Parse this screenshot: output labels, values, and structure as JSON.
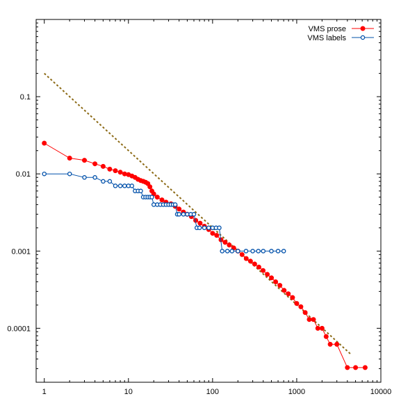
{
  "chart_data": {
    "type": "scatter",
    "x_scale": "log",
    "y_scale": "log",
    "xlim": [
      0.8,
      10000
    ],
    "ylim": [
      2e-05,
      1
    ],
    "x_ticks": [
      {
        "value": 1,
        "label": "1"
      },
      {
        "value": 10,
        "label": "10"
      },
      {
        "value": 100,
        "label": "100"
      },
      {
        "value": 1000,
        "label": "1000"
      },
      {
        "value": 10000,
        "label": "10000"
      }
    ],
    "y_ticks": [
      {
        "value": 0.1,
        "label": "0.1"
      },
      {
        "value": 0.01,
        "label": "0.01"
      },
      {
        "value": 0.001,
        "label": "0.001"
      },
      {
        "value": 0.0001,
        "label": "0.0001"
      }
    ],
    "grid": false,
    "legend_position": "top-right",
    "series": [
      {
        "name": "VMS prose",
        "color": "#ff0000",
        "marker": "filled-circle",
        "line": true,
        "x": [
          1,
          2,
          3,
          4,
          5,
          6,
          7,
          8,
          9,
          10,
          11,
          12,
          13,
          14,
          15,
          16,
          17,
          18,
          19,
          20,
          22,
          25,
          28,
          32,
          36,
          40,
          45,
          50,
          56,
          63,
          71,
          80,
          90,
          100,
          112,
          126,
          141,
          158,
          178,
          200,
          224,
          251,
          282,
          316,
          355,
          398,
          447,
          501,
          562,
          631,
          708,
          794,
          891,
          1000,
          1120,
          1260,
          1410,
          1580,
          1780,
          2000,
          2240,
          2500,
          3000,
          4000,
          5000,
          6500
        ],
        "y": [
          0.025,
          0.016,
          0.015,
          0.0135,
          0.0125,
          0.0115,
          0.011,
          0.0105,
          0.01,
          0.0098,
          0.0094,
          0.009,
          0.0085,
          0.0082,
          0.008,
          0.0078,
          0.0075,
          0.0068,
          0.006,
          0.0055,
          0.005,
          0.0046,
          0.0043,
          0.0041,
          0.0038,
          0.0035,
          0.0032,
          0.003,
          0.0028,
          0.0025,
          0.0023,
          0.0021,
          0.0019,
          0.0017,
          0.0016,
          0.0014,
          0.0013,
          0.0012,
          0.0011,
          0.001,
          0.0009,
          0.0008,
          0.00074,
          0.00068,
          0.00062,
          0.00056,
          0.0005,
          0.00045,
          0.0004,
          0.00036,
          0.00031,
          0.00028,
          0.00025,
          0.00021,
          0.00019,
          0.00016,
          0.00013,
          0.00013,
          0.0001,
          0.0001,
          7.8e-05,
          6.2e-05,
          6.2e-05,
          3.1e-05,
          3.1e-05,
          3.1e-05
        ]
      },
      {
        "name": "VMS labels",
        "color": "#0050aa",
        "marker": "open-circle",
        "line": true,
        "x": [
          1,
          2,
          3,
          4,
          5,
          6,
          7,
          8,
          9,
          10,
          11,
          12,
          13,
          14,
          15,
          16,
          17,
          18,
          19,
          20,
          22,
          24,
          26,
          28,
          30,
          32,
          34,
          36,
          38,
          40,
          45,
          50,
          55,
          60,
          65,
          70,
          80,
          90,
          100,
          110,
          120,
          130,
          150,
          170,
          200,
          250,
          300,
          350,
          400,
          500,
          600,
          700
        ],
        "y": [
          0.01,
          0.01,
          0.009,
          0.009,
          0.008,
          0.008,
          0.007,
          0.007,
          0.007,
          0.007,
          0.007,
          0.006,
          0.006,
          0.006,
          0.005,
          0.005,
          0.005,
          0.005,
          0.005,
          0.004,
          0.004,
          0.004,
          0.004,
          0.004,
          0.004,
          0.004,
          0.004,
          0.004,
          0.003,
          0.003,
          0.003,
          0.003,
          0.003,
          0.003,
          0.002,
          0.002,
          0.002,
          0.002,
          0.002,
          0.002,
          0.002,
          0.001,
          0.001,
          0.001,
          0.001,
          0.001,
          0.001,
          0.001,
          0.001,
          0.001,
          0.001,
          0.001
        ]
      }
    ],
    "reference_line": {
      "color": "#8b6914",
      "style": "dashed",
      "x": [
        1,
        4500
      ],
      "y": [
        0.2,
        4.5e-05
      ]
    }
  }
}
